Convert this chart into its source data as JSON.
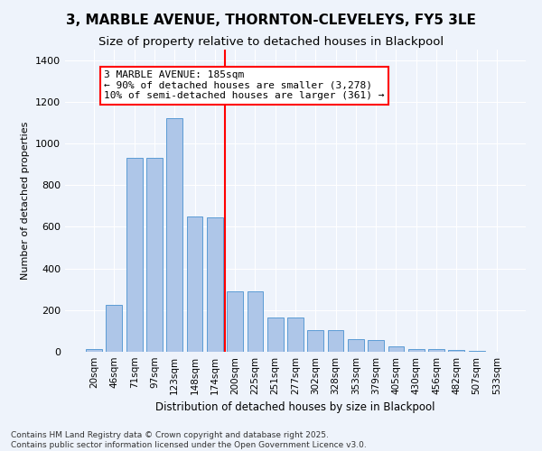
{
  "title": "3, MARBLE AVENUE, THORNTON-CLEVELEYS, FY5 3LE",
  "subtitle": "Size of property relative to detached houses in Blackpool",
  "xlabel": "Distribution of detached houses by size in Blackpool",
  "ylabel": "Number of detached properties",
  "categories": [
    "20sqm",
    "46sqm",
    "71sqm",
    "97sqm",
    "123sqm",
    "148sqm",
    "174sqm",
    "200sqm",
    "225sqm",
    "251sqm",
    "277sqm",
    "302sqm",
    "328sqm",
    "353sqm",
    "379sqm",
    "405sqm",
    "430sqm",
    "456sqm",
    "482sqm",
    "507sqm",
    "533sqm"
  ],
  "bar_heights": [
    15,
    225,
    930,
    930,
    1120,
    650,
    645,
    290,
    290,
    165,
    165,
    105,
    105,
    60,
    55,
    25,
    15,
    13,
    10,
    5,
    2
  ],
  "bar_color": "#aec6e8",
  "bar_edge_color": "#5b9bd5",
  "vline_color": "red",
  "annotation_text": "3 MARBLE AVENUE: 185sqm\n← 90% of detached houses are smaller (3,278)\n10% of semi-detached houses are larger (361) →",
  "annotation_box_color": "white",
  "annotation_box_edge": "red",
  "background_color": "#eef3fb",
  "ylim": [
    0,
    1450
  ],
  "yticks": [
    0,
    200,
    400,
    600,
    800,
    1000,
    1200,
    1400
  ],
  "footer": "Contains HM Land Registry data © Crown copyright and database right 2025.\nContains public sector information licensed under the Open Government Licence v3.0.",
  "title_fontsize": 11,
  "subtitle_fontsize": 9.5,
  "xlabel_fontsize": 8.5,
  "ylabel_fontsize": 8,
  "annot_fontsize": 8,
  "footer_fontsize": 6.5,
  "tick_fontsize": 7.5
}
